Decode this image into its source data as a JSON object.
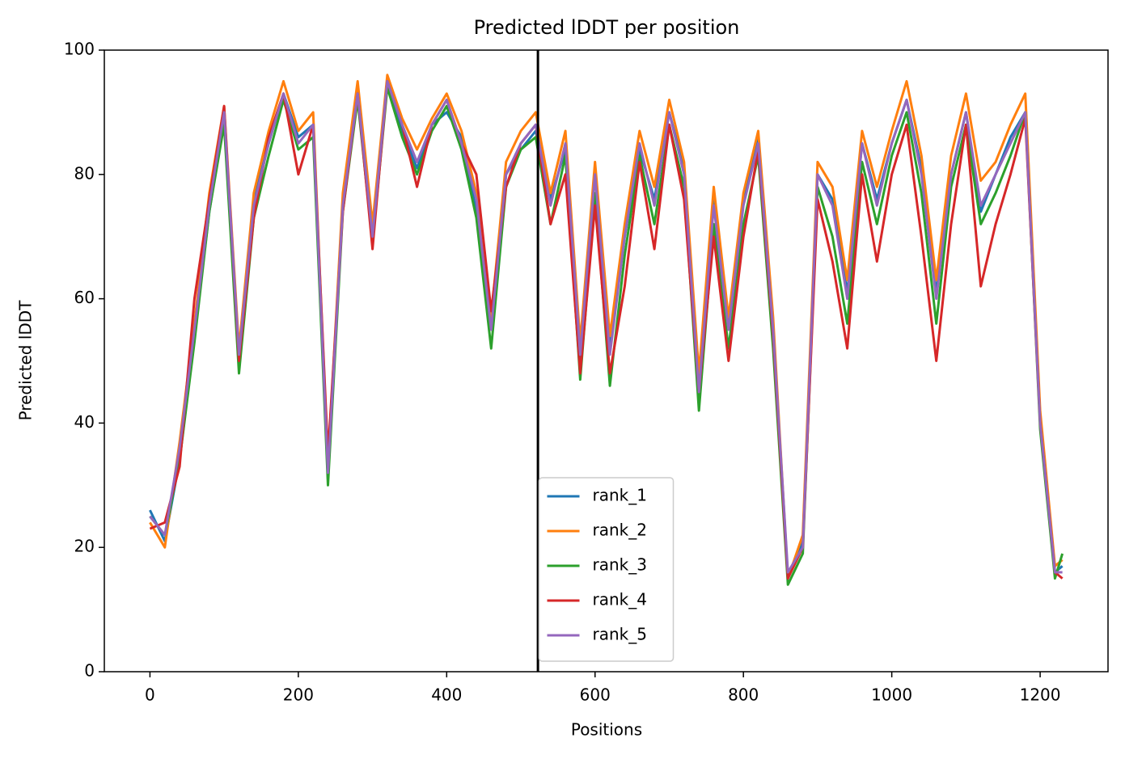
{
  "chart_data": {
    "type": "line",
    "title": "Predicted lDDT per position",
    "x_label": "Positions",
    "y_label": "Predicted lDDT",
    "x": [
      0,
      20,
      40,
      60,
      80,
      100,
      120,
      140,
      160,
      180,
      200,
      220,
      240,
      260,
      280,
      300,
      320,
      340,
      360,
      380,
      400,
      420,
      440,
      460,
      480,
      500,
      520,
      540,
      560,
      580,
      600,
      620,
      640,
      660,
      680,
      700,
      720,
      740,
      760,
      780,
      800,
      820,
      840,
      860,
      880,
      900,
      920,
      940,
      960,
      980,
      1000,
      1020,
      1040,
      1060,
      1080,
      1100,
      1120,
      1140,
      1160,
      1180,
      1200,
      1220,
      1230
    ],
    "series": [
      {
        "name": "rank_1",
        "color": "#1f77b4",
        "values": [
          26,
          21,
          34,
          54,
          74,
          89,
          51,
          76,
          85,
          93,
          86,
          88,
          31,
          76,
          94,
          71,
          95,
          87,
          81,
          88,
          90,
          86,
          74,
          56,
          80,
          84,
          87,
          76,
          84,
          49,
          80,
          52,
          70,
          84,
          76,
          90,
          81,
          46,
          76,
          56,
          76,
          86,
          55,
          15,
          21,
          80,
          76,
          61,
          85,
          76,
          85,
          92,
          81,
          61,
          80,
          90,
          74,
          80,
          86,
          90,
          41,
          16,
          17
        ]
      },
      {
        "name": "rank_2",
        "color": "#ff7f0e",
        "values": [
          24,
          20,
          37,
          56,
          77,
          91,
          52,
          77,
          87,
          95,
          87,
          90,
          33,
          77,
          95,
          72,
          96,
          89,
          84,
          89,
          93,
          87,
          77,
          57,
          82,
          87,
          90,
          77,
          87,
          53,
          82,
          54,
          72,
          87,
          78,
          92,
          82,
          48,
          78,
          57,
          77,
          87,
          57,
          15,
          22,
          82,
          78,
          63,
          87,
          78,
          87,
          95,
          83,
          63,
          83,
          93,
          79,
          82,
          88,
          93,
          42,
          17,
          18
        ]
      },
      {
        "name": "rank_3",
        "color": "#2ca02c",
        "values": [
          25,
          22,
          34,
          53,
          74,
          88,
          48,
          73,
          83,
          92,
          84,
          86,
          30,
          74,
          92,
          69,
          94,
          86,
          80,
          87,
          91,
          84,
          73,
          52,
          78,
          84,
          86,
          72,
          83,
          47,
          77,
          46,
          67,
          83,
          72,
          88,
          78,
          42,
          72,
          52,
          72,
          83,
          52,
          14,
          19,
          78,
          70,
          56,
          82,
          72,
          83,
          90,
          77,
          56,
          78,
          88,
          72,
          77,
          83,
          90,
          39,
          15,
          19
        ]
      },
      {
        "name": "rank_4",
        "color": "#d62728",
        "values": [
          23,
          24,
          33,
          60,
          76,
          91,
          50,
          73,
          86,
          93,
          80,
          88,
          35,
          74,
          93,
          68,
          95,
          88,
          78,
          88,
          92,
          85,
          80,
          58,
          78,
          85,
          88,
          72,
          80,
          48,
          75,
          48,
          62,
          82,
          68,
          88,
          76,
          45,
          70,
          50,
          70,
          84,
          54,
          15,
          20,
          76,
          66,
          52,
          80,
          66,
          80,
          88,
          70,
          50,
          72,
          88,
          62,
          72,
          80,
          89,
          40,
          16,
          15
        ]
      },
      {
        "name": "rank_5",
        "color": "#9467bd",
        "values": [
          25,
          22,
          36,
          55,
          75,
          90,
          51,
          75,
          85,
          93,
          85,
          88,
          32,
          75,
          93,
          70,
          95,
          88,
          82,
          88,
          92,
          85,
          76,
          55,
          80,
          85,
          88,
          75,
          85,
          51,
          80,
          51,
          70,
          85,
          75,
          90,
          80,
          45,
          75,
          55,
          75,
          85,
          55,
          16,
          20,
          80,
          75,
          60,
          85,
          75,
          85,
          92,
          80,
          60,
          80,
          90,
          75,
          80,
          85,
          90,
          40,
          16,
          16
        ]
      }
    ],
    "vlines": [
      523
    ],
    "vline_color": "#000000",
    "xlim": [
      -61.5,
      1291.5
    ],
    "xticks": [
      0,
      200,
      400,
      600,
      800,
      1000,
      1200
    ],
    "ylim": [
      0,
      100
    ],
    "yticks": [
      0,
      20,
      40,
      60,
      80,
      100
    ],
    "legend": "lower center"
  }
}
